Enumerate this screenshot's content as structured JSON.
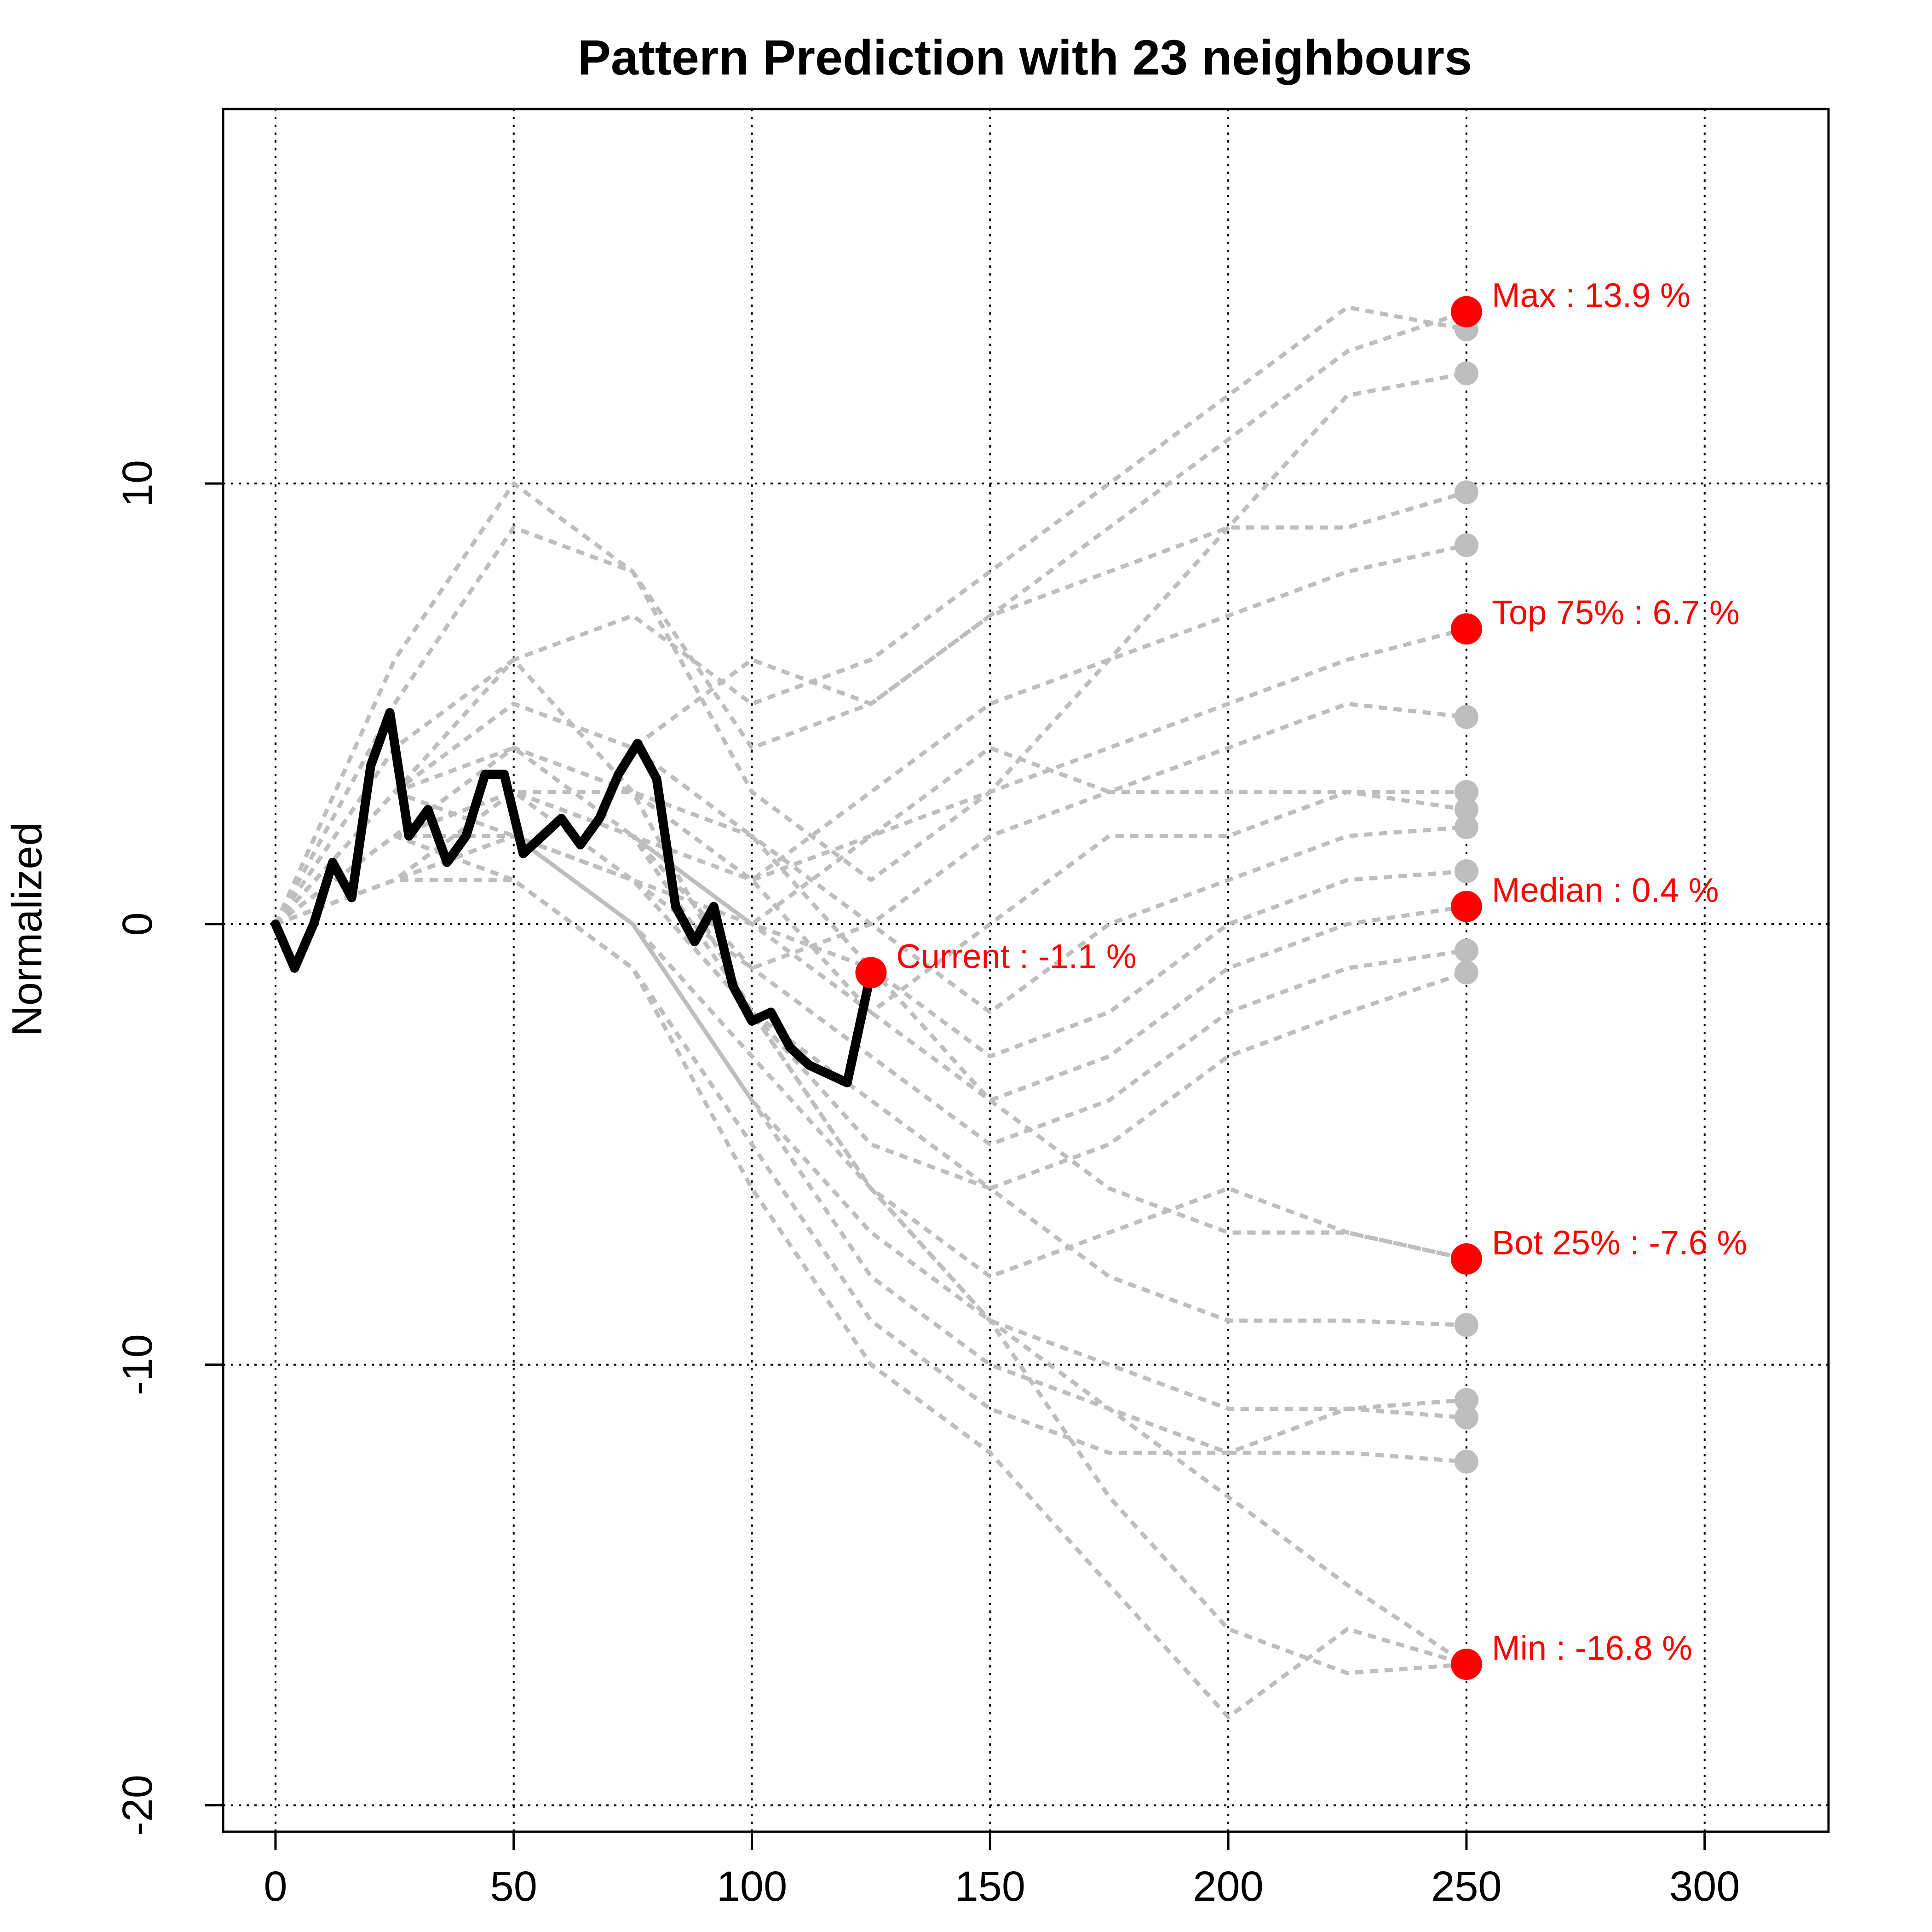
{
  "chart_data": {
    "type": "line",
    "title": "Pattern Prediction with 23 neighbours",
    "xlabel": "",
    "ylabel": "Normalized",
    "xlim": [
      -11,
      326
    ],
    "ylim": [
      -20.6,
      18.5
    ],
    "x_ticks": [
      "0",
      "50",
      "100",
      "150",
      "200",
      "250",
      "300"
    ],
    "y_ticks": [
      "-20",
      "-10",
      "0",
      "10"
    ],
    "grid": true,
    "colors": {
      "current": "#000000",
      "neighbours": "#bebebe",
      "markers": "#ff0000",
      "grid": "#000000"
    },
    "current_series": {
      "name": "Current",
      "x": [
        0,
        4,
        8,
        12,
        16,
        20,
        24,
        28,
        32,
        36,
        40,
        44,
        48,
        52,
        56,
        60,
        64,
        68,
        72,
        76,
        80,
        84,
        88,
        92,
        96,
        100,
        104,
        108,
        112,
        116,
        120,
        125
      ],
      "y": [
        0,
        -1,
        0,
        1.4,
        0.6,
        3.6,
        4.8,
        2,
        2.6,
        1.4,
        2,
        3.4,
        3.4,
        1.6,
        2,
        2.4,
        1.8,
        2.4,
        3.4,
        4.1,
        3.3,
        0.4,
        -0.4,
        0.4,
        -1.4,
        -2.2,
        -2,
        -2.8,
        -3.2,
        -3.4,
        -3.6,
        -1.1
      ]
    },
    "neighbour_series": [
      {
        "x": [
          0,
          25,
          50,
          75,
          100,
          125,
          150,
          175,
          200,
          225,
          250
        ],
        "y": [
          0,
          4,
          6,
          3,
          -2,
          -6,
          -9,
          -11,
          -13,
          -15,
          -16.8
        ]
      },
      {
        "x": [
          0,
          25,
          50,
          75,
          100,
          125,
          150,
          175,
          200,
          225,
          250
        ],
        "y": [
          0,
          5,
          9,
          8,
          4,
          5,
          7,
          9,
          11,
          13,
          13.9
        ]
      },
      {
        "x": [
          0,
          25,
          50,
          75,
          100,
          125,
          150,
          175,
          200,
          225,
          250
        ],
        "y": [
          0,
          6,
          10,
          8,
          3,
          1,
          3,
          6,
          9,
          12,
          12.5
        ]
      },
      {
        "x": [
          0,
          25,
          50,
          75,
          100,
          125,
          150,
          175,
          200,
          225,
          250
        ],
        "y": [
          0,
          3,
          5,
          4,
          6,
          5,
          7,
          8,
          9,
          9,
          9.8
        ]
      },
      {
        "x": [
          0,
          25,
          50,
          75,
          100,
          125,
          150,
          175,
          200,
          225,
          250
        ],
        "y": [
          0,
          2,
          4,
          3,
          1,
          3,
          5,
          6,
          7,
          8,
          8.6
        ]
      },
      {
        "x": [
          0,
          25,
          50,
          75,
          100,
          125,
          150,
          175,
          200,
          225,
          250
        ],
        "y": [
          0,
          2,
          3,
          2,
          1,
          2,
          3,
          4,
          5,
          6,
          6.7
        ]
      },
      {
        "x": [
          0,
          25,
          50,
          75,
          100,
          125,
          150,
          175,
          200,
          225,
          250
        ],
        "y": [
          0,
          3,
          4,
          2,
          0,
          2,
          4,
          3,
          4,
          5,
          4.7
        ]
      },
      {
        "x": [
          0,
          25,
          50,
          75,
          100,
          125,
          150,
          175,
          200,
          225,
          250
        ],
        "y": [
          0,
          2,
          2,
          1,
          -1,
          0,
          2,
          3,
          3,
          3,
          3.0
        ]
      },
      {
        "x": [
          0,
          25,
          50,
          75,
          100,
          125,
          150,
          175,
          200,
          225,
          250
        ],
        "y": [
          0,
          1,
          3,
          2,
          0,
          -2,
          0,
          2,
          2,
          3,
          2.6
        ]
      },
      {
        "x": [
          0,
          25,
          50,
          75,
          100,
          125,
          150,
          175,
          200,
          225,
          250
        ],
        "y": [
          0,
          2,
          3,
          3,
          2,
          0,
          -2,
          0,
          1,
          2,
          2.2
        ]
      },
      {
        "x": [
          0,
          25,
          50,
          75,
          100,
          125,
          150,
          175,
          200,
          225,
          250
        ],
        "y": [
          0,
          1,
          2,
          1,
          0,
          -1,
          -3,
          -2,
          0,
          1,
          1.2
        ]
      },
      {
        "x": [
          0,
          25,
          50,
          75,
          100,
          125,
          150,
          175,
          200,
          225,
          250
        ],
        "y": [
          0,
          2,
          4,
          3,
          1,
          -2,
          -4,
          -3,
          -1,
          0,
          0.4
        ]
      },
      {
        "x": [
          0,
          25,
          50,
          75,
          100,
          125,
          150,
          175,
          200,
          225,
          250
        ],
        "y": [
          0,
          1,
          3,
          2,
          -1,
          -3,
          -5,
          -4,
          -2,
          -1,
          -0.6
        ]
      },
      {
        "x": [
          0,
          25,
          50,
          75,
          100,
          125,
          150,
          175,
          200,
          225,
          250
        ],
        "y": [
          0,
          2,
          2,
          1,
          -2,
          -4,
          -6,
          -5,
          -3,
          -2,
          -1.1
        ]
      },
      {
        "x": [
          0,
          25,
          50,
          75,
          100,
          125,
          150,
          175,
          200,
          225,
          250
        ],
        "y": [
          0,
          3,
          5,
          4,
          2,
          -1,
          -4,
          -6,
          -7,
          -7,
          -7.6
        ]
      },
      {
        "x": [
          0,
          25,
          50,
          75,
          100,
          125,
          150,
          175,
          200,
          225,
          250
        ],
        "y": [
          0,
          1,
          2,
          0,
          -3,
          -6,
          -8,
          -7,
          -6,
          -7,
          -7.6
        ]
      },
      {
        "x": [
          0,
          25,
          50,
          75,
          100,
          125,
          150,
          175,
          200,
          225,
          250
        ],
        "y": [
          0,
          2,
          3,
          1,
          -2,
          -5,
          -6,
          -8,
          -9,
          -9,
          -9.1
        ]
      },
      {
        "x": [
          0,
          25,
          50,
          75,
          100,
          125,
          150,
          175,
          200,
          225,
          250
        ],
        "y": [
          0,
          1,
          2,
          0,
          -4,
          -7,
          -9,
          -10,
          -11,
          -11,
          -10.8
        ]
      },
      {
        "x": [
          0,
          25,
          50,
          75,
          100,
          125,
          150,
          175,
          200,
          225,
          250
        ],
        "y": [
          0,
          2,
          1,
          -1,
          -5,
          -9,
          -11,
          -12,
          -12,
          -11,
          -11.2
        ]
      },
      {
        "x": [
          0,
          25,
          50,
          75,
          100,
          125,
          150,
          175,
          200,
          225,
          250
        ],
        "y": [
          0,
          3,
          2,
          0,
          -4,
          -8,
          -10,
          -11,
          -12,
          -12,
          -12.2
        ]
      },
      {
        "x": [
          0,
          25,
          50,
          75,
          100,
          125,
          150,
          175,
          200,
          225,
          250
        ],
        "y": [
          0,
          2,
          3,
          2,
          -2,
          -6,
          -9,
          -13,
          -16,
          -17,
          -16.8
        ]
      },
      {
        "x": [
          0,
          25,
          50,
          75,
          100,
          125,
          150,
          175,
          200,
          225,
          250
        ],
        "y": [
          0,
          1,
          1,
          -1,
          -6,
          -10,
          -12,
          -15,
          -18,
          -16,
          -16.8
        ]
      },
      {
        "x": [
          0,
          25,
          50,
          75,
          100,
          125,
          150,
          175,
          200,
          225,
          250
        ],
        "y": [
          0,
          3,
          6,
          7,
          5,
          6,
          8,
          10,
          12,
          14,
          13.5
        ]
      }
    ],
    "markers": [
      {
        "label": "Max : 13.9 %",
        "x": 250,
        "y": 13.9
      },
      {
        "label": "Top 75% : 6.7 %",
        "x": 250,
        "y": 6.7
      },
      {
        "label": "Median : 0.4 %",
        "x": 250,
        "y": 0.4
      },
      {
        "label": "Bot 25% : -7.6 %",
        "x": 250,
        "y": -7.6
      },
      {
        "label": "Min : -16.8 %",
        "x": 250,
        "y": -16.8
      },
      {
        "label": "Current : -1.1 %",
        "x": 125,
        "y": -1.1
      }
    ]
  }
}
